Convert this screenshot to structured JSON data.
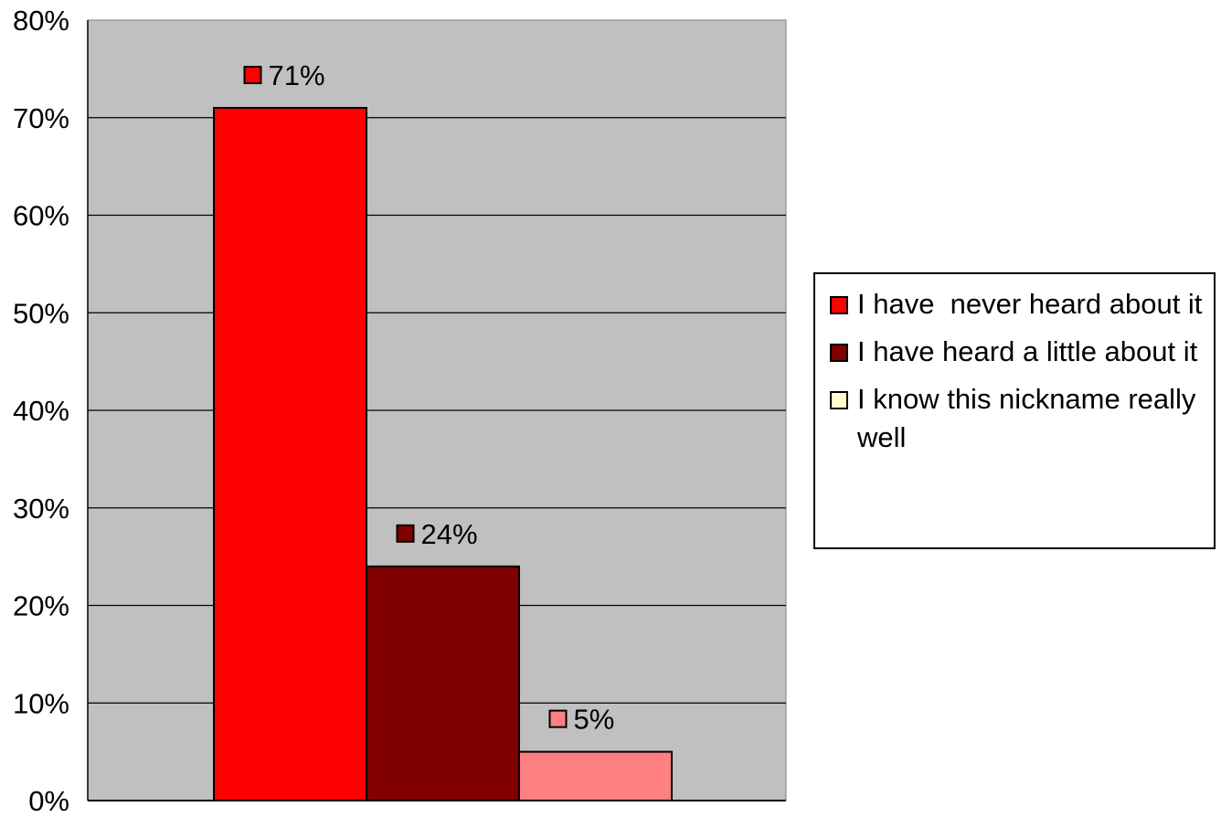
{
  "chart_data": {
    "type": "bar",
    "title": "",
    "xlabel": "",
    "ylabel": "",
    "ylim": [
      0,
      80
    ],
    "y_ticks": [
      "0%",
      "10%",
      "20%",
      "30%",
      "40%",
      "50%",
      "60%",
      "70%",
      "80%"
    ],
    "grid": true,
    "plot_background": "#c0c0c0",
    "legend_position": "right",
    "series": [
      {
        "name": "I have  never heard about it",
        "value": 71,
        "label": "71%",
        "color": "#ff0000"
      },
      {
        "name": "I have heard a little about it",
        "value": 24,
        "label": "24%",
        "color": "#800000"
      },
      {
        "name": "I know this nickname really well",
        "value": 5,
        "label": "5%",
        "color": "#ff8080"
      }
    ]
  },
  "legend": {
    "items": [
      {
        "label": "I have  never heard about it",
        "swatch_color": "#ff0000"
      },
      {
        "label": "I have heard a little about it",
        "swatch_color": "#800000"
      },
      {
        "label": "I know this nickname really well",
        "swatch_color": "#ffffcc"
      }
    ]
  }
}
